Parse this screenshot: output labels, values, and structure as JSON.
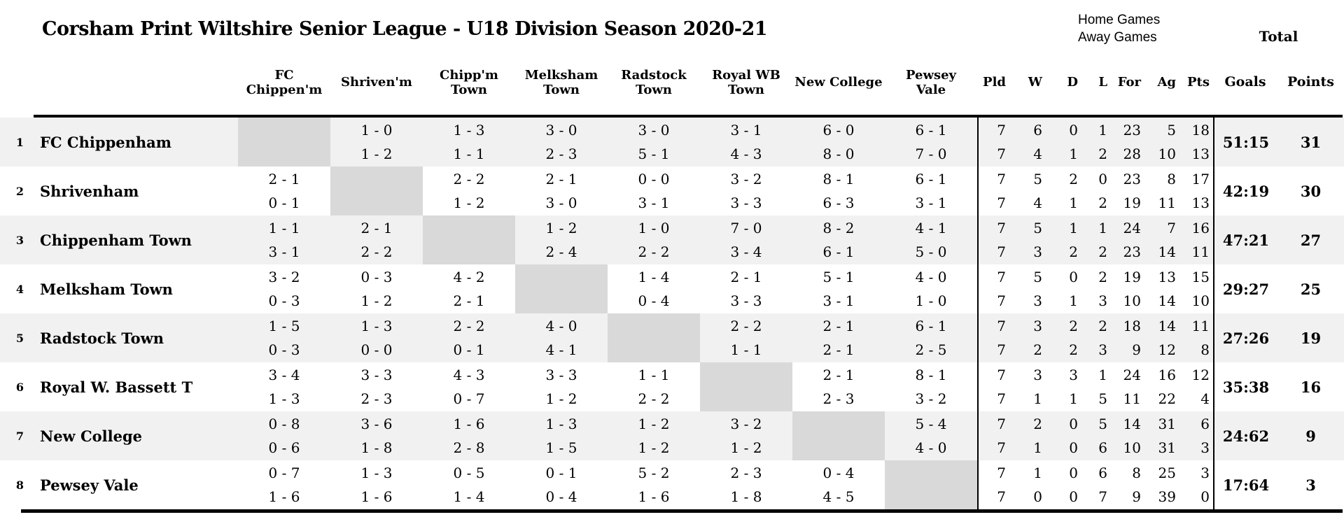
{
  "title": "Corsham Print Wiltshire Senior League - U18 Division Season 2020-21",
  "legend": {
    "home": "Home Games",
    "away": "Away Games",
    "total": "Total"
  },
  "matrix_columns": [
    "FC\nChippen'm",
    "Shriven'm",
    "Chipp'm\nTown",
    "Melksham\nTown",
    "Radstock\nTown",
    "Royal WB\nTown",
    "New College",
    "Pewsey\nVale"
  ],
  "stat_columns": [
    "Pld",
    "W",
    "D",
    "L",
    "For",
    "Ag",
    "Pts"
  ],
  "total_columns": [
    "Goals",
    "Points"
  ],
  "colors": {
    "stripe": "#f1f1f1",
    "diagonal": "#d9d9d9",
    "rule": "#000000"
  },
  "teams": [
    {
      "rank": 1,
      "name": "FC Chippenham",
      "home_scores": [
        "",
        "1 - 0",
        "1 - 3",
        "3 - 0",
        "3 - 0",
        "3 - 1",
        "6 - 0",
        "6 - 1"
      ],
      "away_scores": [
        "",
        "1 - 2",
        "1 - 1",
        "2 - 3",
        "5 - 1",
        "4 - 3",
        "8 - 0",
        "7 - 0"
      ],
      "home_stats": [
        7,
        6,
        0,
        1,
        23,
        5,
        18
      ],
      "away_stats": [
        7,
        4,
        1,
        2,
        28,
        10,
        13
      ],
      "goals": "51:15",
      "points": 31
    },
    {
      "rank": 2,
      "name": "Shrivenham",
      "home_scores": [
        "2 - 1",
        "",
        "2 - 2",
        "2 - 1",
        "0 - 0",
        "3 - 2",
        "8 - 1",
        "6 - 1"
      ],
      "away_scores": [
        "0 - 1",
        "",
        "1 - 2",
        "3 - 0",
        "3 - 1",
        "3 - 3",
        "6 - 3",
        "3 - 1"
      ],
      "home_stats": [
        7,
        5,
        2,
        0,
        23,
        8,
        17
      ],
      "away_stats": [
        7,
        4,
        1,
        2,
        19,
        11,
        13
      ],
      "goals": "42:19",
      "points": 30
    },
    {
      "rank": 3,
      "name": "Chippenham Town",
      "home_scores": [
        "1 - 1",
        "2 - 1",
        "",
        "1 - 2",
        "1 - 0",
        "7 - 0",
        "8 - 2",
        "4 - 1"
      ],
      "away_scores": [
        "3 - 1",
        "2 - 2",
        "",
        "2 - 4",
        "2 - 2",
        "3 - 4",
        "6 - 1",
        "5 - 0"
      ],
      "home_stats": [
        7,
        5,
        1,
        1,
        24,
        7,
        16
      ],
      "away_stats": [
        7,
        3,
        2,
        2,
        23,
        14,
        11
      ],
      "goals": "47:21",
      "points": 27
    },
    {
      "rank": 4,
      "name": "Melksham Town",
      "home_scores": [
        "3 - 2",
        "0 - 3",
        "4 - 2",
        "",
        "1 - 4",
        "2 - 1",
        "5 - 1",
        "4 - 0"
      ],
      "away_scores": [
        "0 - 3",
        "1 - 2",
        "2 - 1",
        "",
        "0 - 4",
        "3 - 3",
        "3 - 1",
        "1 - 0"
      ],
      "home_stats": [
        7,
        5,
        0,
        2,
        19,
        13,
        15
      ],
      "away_stats": [
        7,
        3,
        1,
        3,
        10,
        14,
        10
      ],
      "goals": "29:27",
      "points": 25
    },
    {
      "rank": 5,
      "name": "Radstock Town",
      "home_scores": [
        "1 - 5",
        "1 - 3",
        "2 - 2",
        "4 - 0",
        "",
        "2 - 2",
        "2 - 1",
        "6 - 1"
      ],
      "away_scores": [
        "0 - 3",
        "0 - 0",
        "0 - 1",
        "4 - 1",
        "",
        "1 - 1",
        "2 - 1",
        "2 - 5"
      ],
      "home_stats": [
        7,
        3,
        2,
        2,
        18,
        14,
        11
      ],
      "away_stats": [
        7,
        2,
        2,
        3,
        9,
        12,
        8
      ],
      "goals": "27:26",
      "points": 19
    },
    {
      "rank": 6,
      "name": "Royal W. Bassett T",
      "home_scores": [
        "3 - 4",
        "3 - 3",
        "4 - 3",
        "3 - 3",
        "1 - 1",
        "",
        "2 - 1",
        "8 - 1"
      ],
      "away_scores": [
        "1 - 3",
        "2 - 3",
        "0 - 7",
        "1 - 2",
        "2 - 2",
        "",
        "2 - 3",
        "3 - 2"
      ],
      "home_stats": [
        7,
        3,
        3,
        1,
        24,
        16,
        12
      ],
      "away_stats": [
        7,
        1,
        1,
        5,
        11,
        22,
        4
      ],
      "goals": "35:38",
      "points": 16
    },
    {
      "rank": 7,
      "name": "New College",
      "home_scores": [
        "0 - 8",
        "3 - 6",
        "1 - 6",
        "1 - 3",
        "1 - 2",
        "3 - 2",
        "",
        "5 - 4"
      ],
      "away_scores": [
        "0 - 6",
        "1 - 8",
        "2 - 8",
        "1 - 5",
        "1 - 2",
        "1 - 2",
        "",
        "4 - 0"
      ],
      "home_stats": [
        7,
        2,
        0,
        5,
        14,
        31,
        6
      ],
      "away_stats": [
        7,
        1,
        0,
        6,
        10,
        31,
        3
      ],
      "goals": "24:62",
      "points": 9
    },
    {
      "rank": 8,
      "name": "Pewsey Vale",
      "home_scores": [
        "0 - 7",
        "1 - 3",
        "0 - 5",
        "0 - 1",
        "5 - 2",
        "2 - 3",
        "0 - 4",
        ""
      ],
      "away_scores": [
        "1 - 6",
        "1 - 6",
        "1 - 4",
        "0 - 4",
        "1 - 6",
        "1 - 8",
        "4 - 5",
        ""
      ],
      "home_stats": [
        7,
        1,
        0,
        6,
        8,
        25,
        3
      ],
      "away_stats": [
        7,
        0,
        0,
        7,
        9,
        39,
        0
      ],
      "goals": "17:64",
      "points": 3
    }
  ]
}
